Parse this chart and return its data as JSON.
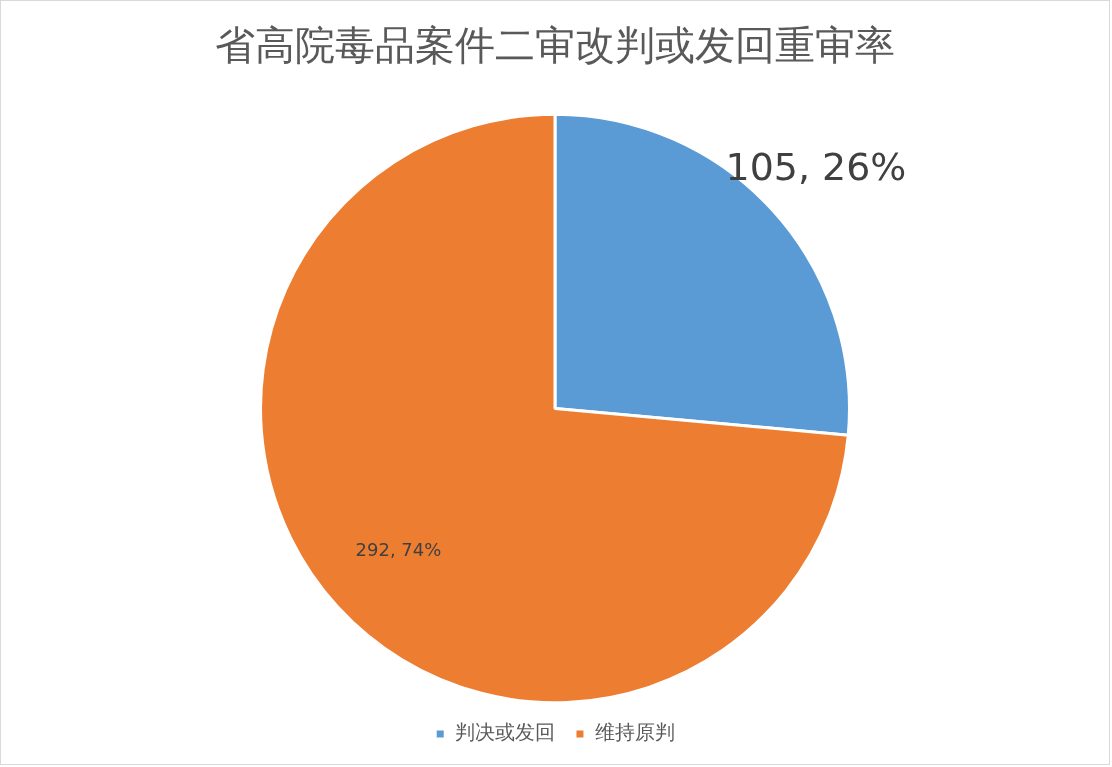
{
  "chart_data": {
    "type": "pie",
    "title": "省高院毒品案件二审改判或发回重审率",
    "categories": [
      "判决或发回",
      "维持原判"
    ],
    "values": [
      105,
      292
    ],
    "colors": [
      "#5b9bd5",
      "#ed7d31"
    ],
    "value_labels": [
      "105, 26%",
      "292, 74%"
    ],
    "legend": "bottom"
  }
}
